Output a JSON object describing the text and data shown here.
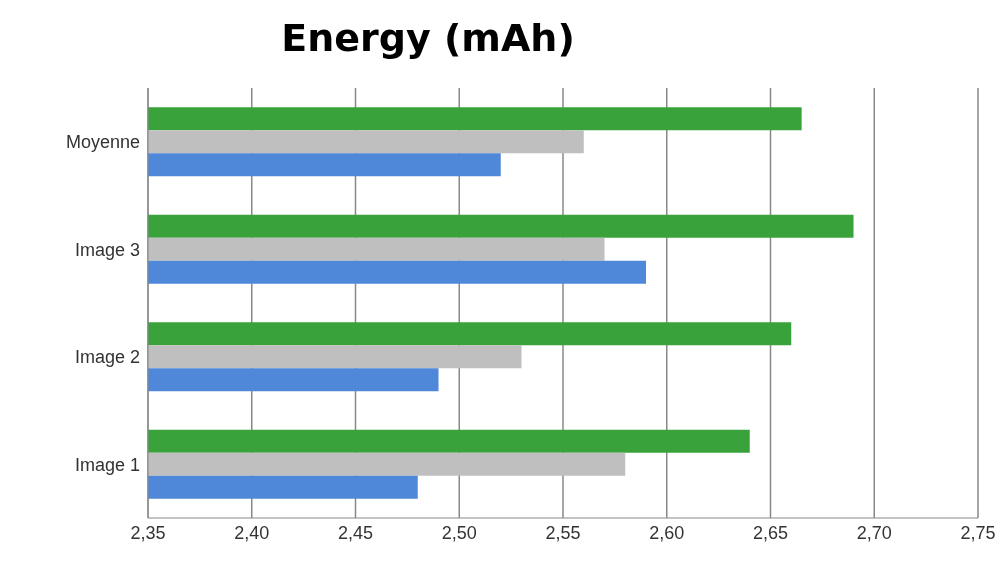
{
  "chart_data": {
    "type": "bar",
    "orientation": "horizontal",
    "title": "Energy (mAh)",
    "categories": [
      "Moyenne",
      "Image 3",
      "Image 2",
      "Image 1"
    ],
    "series": [
      {
        "color": "#3aa23a",
        "values": [
          2.665,
          2.69,
          2.66,
          2.64
        ]
      },
      {
        "color": "#bfbfbf",
        "values": [
          2.56,
          2.57,
          2.53,
          2.58
        ]
      },
      {
        "color": "#4f88d8",
        "values": [
          2.52,
          2.59,
          2.49,
          2.48
        ]
      }
    ],
    "xlim": [
      2.35,
      2.75
    ],
    "xticks": [
      {
        "value": 2.35,
        "label": "2,35"
      },
      {
        "value": 2.4,
        "label": "2,40"
      },
      {
        "value": 2.45,
        "label": "2,45"
      },
      {
        "value": 2.5,
        "label": "2,50"
      },
      {
        "value": 2.55,
        "label": "2,55"
      },
      {
        "value": 2.6,
        "label": "2,60"
      },
      {
        "value": 2.65,
        "label": "2,65"
      },
      {
        "value": 2.7,
        "label": "2,70"
      },
      {
        "value": 2.75,
        "label": "2,75"
      }
    ],
    "grid": "x"
  }
}
